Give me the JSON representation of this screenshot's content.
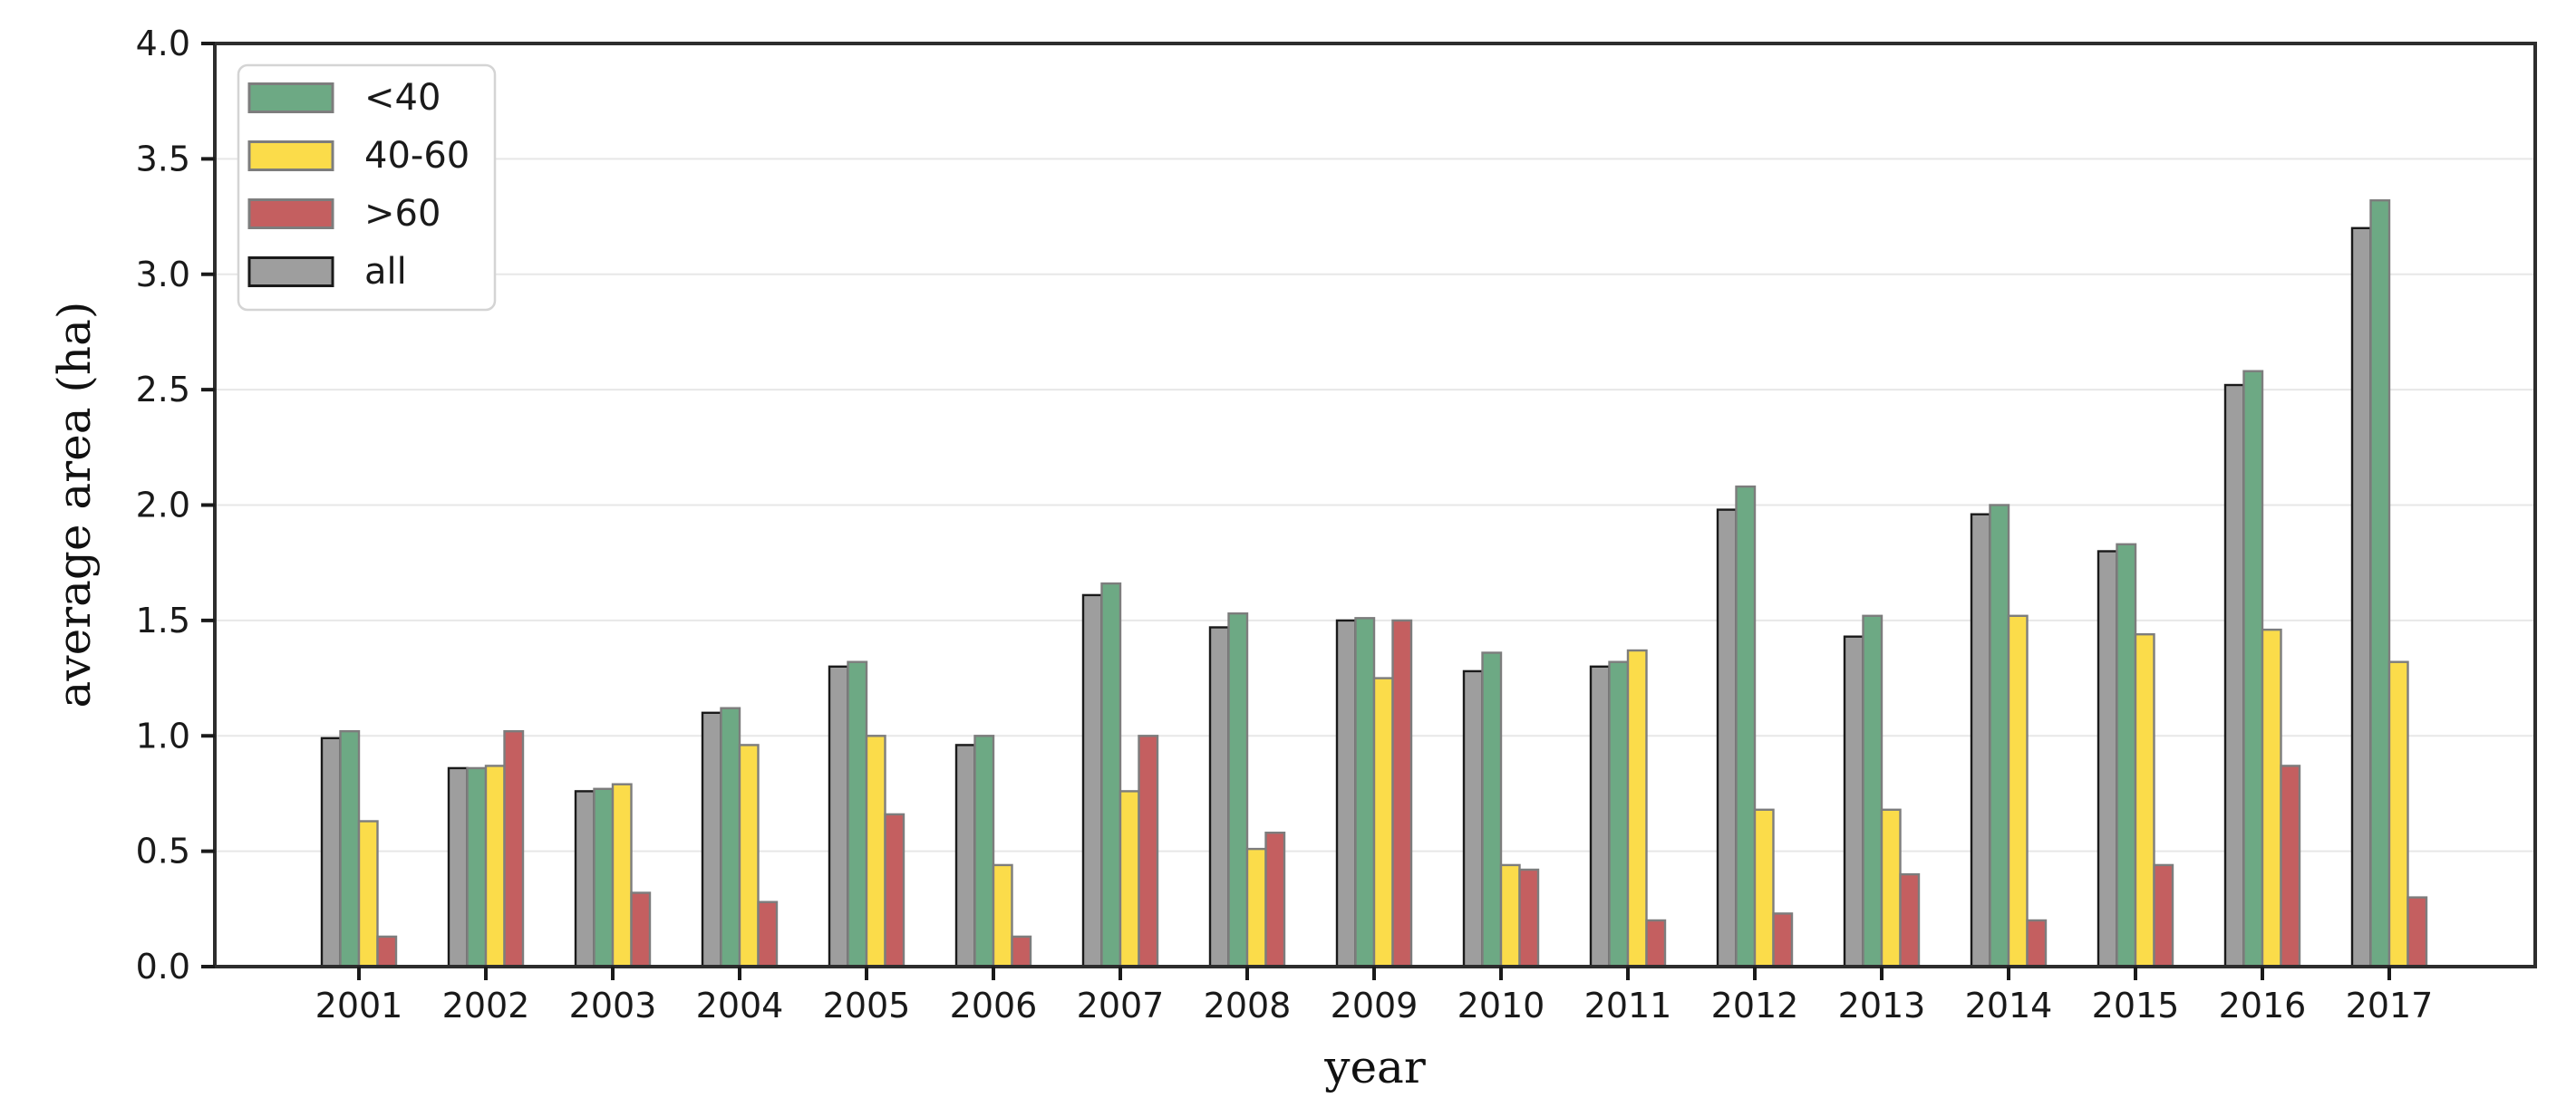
{
  "figure": {
    "background": "#ffffff",
    "text_color": "#1a1a1a",
    "spine_color": "#2d2d2d",
    "grid_color": "#e7e7e7"
  },
  "chart_data": {
    "type": "bar",
    "title": "",
    "xlabel": "year",
    "ylabel": "average area (ha)",
    "categories": [
      "2001",
      "2002",
      "2003",
      "2004",
      "2005",
      "2006",
      "2007",
      "2008",
      "2009",
      "2010",
      "2011",
      "2012",
      "2013",
      "2014",
      "2015",
      "2016",
      "2017"
    ],
    "series": [
      {
        "name": "all",
        "color": "#9e9e9e",
        "edge": "#1a1a1a",
        "values": [
          0.99,
          0.86,
          0.76,
          1.1,
          1.3,
          0.96,
          1.61,
          1.47,
          1.5,
          1.28,
          1.3,
          1.98,
          1.43,
          1.96,
          1.8,
          2.52,
          3.2
        ]
      },
      {
        "name": "<40",
        "color": "#6da984",
        "edge": "#7d7d7d",
        "values": [
          1.02,
          0.86,
          0.77,
          1.12,
          1.32,
          1.0,
          1.66,
          1.53,
          1.51,
          1.36,
          1.32,
          2.08,
          1.52,
          2.0,
          1.83,
          2.58,
          3.32
        ]
      },
      {
        "name": "40-60",
        "color": "#fbdc4a",
        "edge": "#7d7d7d",
        "values": [
          0.63,
          0.87,
          0.79,
          0.96,
          1.0,
          0.44,
          0.76,
          0.51,
          1.25,
          0.44,
          1.37,
          0.68,
          0.68,
          1.52,
          1.44,
          1.46,
          1.32
        ]
      },
      {
        "name": ">60",
        "color": "#c45f60",
        "edge": "#7d7d7d",
        "values": [
          0.13,
          1.02,
          0.32,
          0.28,
          0.66,
          0.13,
          1.0,
          0.58,
          1.5,
          0.42,
          0.2,
          0.23,
          0.4,
          0.2,
          0.44,
          0.87,
          0.3
        ]
      }
    ],
    "legend": {
      "position": "upper-left",
      "order": [
        "<40",
        "40-60",
        ">60",
        "all"
      ],
      "border_color": "#d4d4d4",
      "background": "#ffffff"
    },
    "ylim": [
      0.0,
      4.0
    ],
    "ytick_step": 0.5,
    "ytick_labels": [
      "0.0",
      "0.5",
      "1.0",
      "1.5",
      "2.0",
      "2.5",
      "3.0",
      "3.5",
      "4.0"
    ],
    "grid": true
  }
}
